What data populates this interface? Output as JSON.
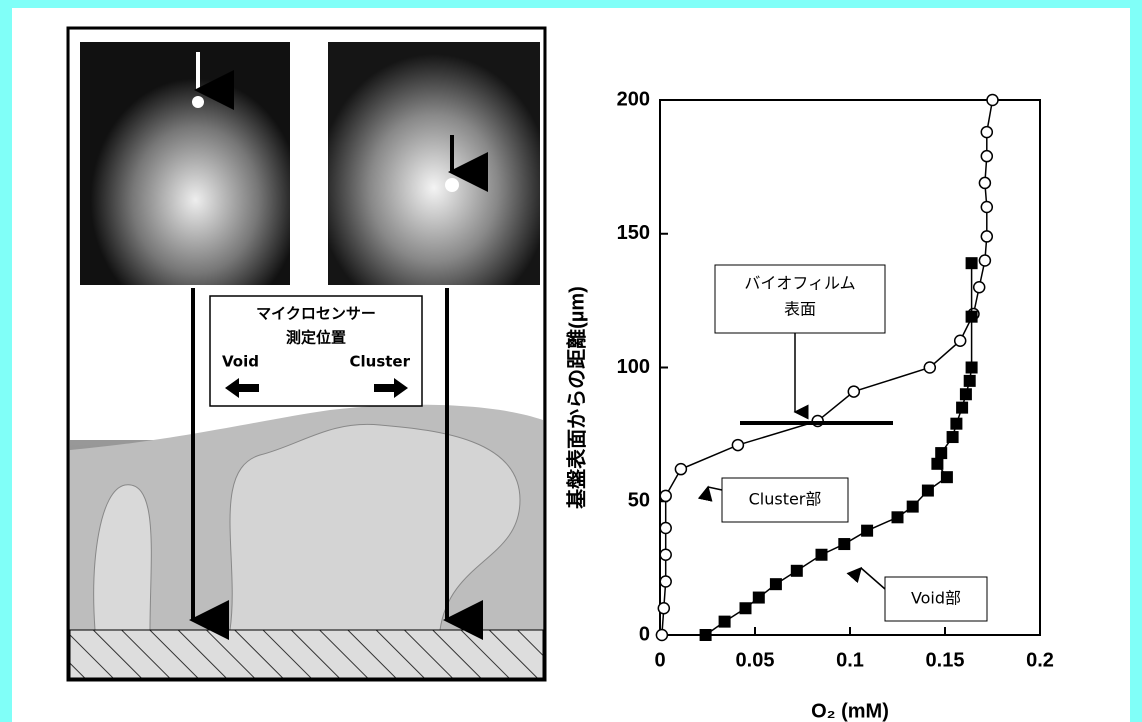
{
  "illustration": {
    "sensor_label": [
      "マイクロセンサー",
      "測定位置"
    ],
    "left_label": "Void",
    "right_label": "Cluster"
  },
  "chart_data": {
    "type": "scatter",
    "x_label": "O₂ (mM)",
    "y_label": "基盤表面からの距離(µm)",
    "annotation": [
      "バイオフィルム",
      "表面"
    ],
    "xlim": [
      0,
      0.2
    ],
    "xticks": [
      0,
      0.05,
      0.1,
      0.15,
      0.2
    ],
    "ylim": [
      0,
      200
    ],
    "yticks": [
      0,
      50,
      100,
      150,
      200
    ],
    "series": [
      {
        "name": "Cluster部",
        "color": "#000000",
        "marker": "open-circle",
        "x": [
          0.001,
          0.002,
          0.003,
          0.003,
          0.003,
          0.003,
          0.011,
          0.041,
          0.083,
          0.102,
          0.142,
          0.158,
          0.165,
          0.168,
          0.171,
          0.172,
          0.172,
          0.171,
          0.172,
          0.172,
          0.175
        ],
        "values": [
          0,
          10,
          20,
          30,
          40,
          52,
          62,
          71,
          80,
          91,
          100,
          110,
          120,
          130,
          140,
          149,
          160,
          169,
          179,
          188,
          200
        ]
      },
      {
        "name": "Void部",
        "color": "#000000",
        "marker": "filled-square",
        "x": [
          0.024,
          0.034,
          0.045,
          0.052,
          0.061,
          0.072,
          0.085,
          0.097,
          0.109,
          0.125,
          0.133,
          0.141,
          0.151,
          0.146,
          0.148,
          0.154,
          0.156,
          0.159,
          0.161,
          0.163,
          0.164,
          0.164,
          0.164
        ],
        "values": [
          0,
          5,
          10,
          14,
          19,
          24,
          30,
          34,
          39,
          44,
          48,
          54,
          59,
          64,
          68,
          74,
          79,
          85,
          90,
          95,
          100,
          119,
          139
        ]
      }
    ]
  }
}
